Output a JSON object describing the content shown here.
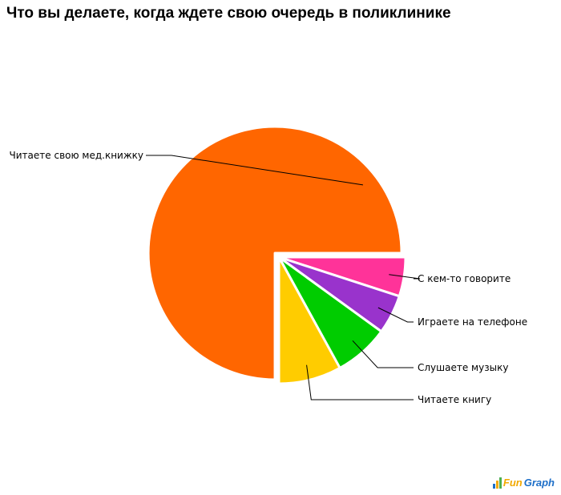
{
  "chart_data": {
    "type": "pie",
    "title": "Что вы делаете, когда ждете свою очередь в поликлинике",
    "slices": [
      {
        "label": "С кем-то говорите",
        "value": 5,
        "color": "#ff3399"
      },
      {
        "label": "Играете на телефоне",
        "value": 5,
        "color": "#9933cc"
      },
      {
        "label": "Слушаете музыку",
        "value": 7,
        "color": "#00cc00"
      },
      {
        "label": "Читаете книгу",
        "value": 8,
        "color": "#ffcc00"
      },
      {
        "label": "Читаете свою мед.книжку",
        "value": 75,
        "color": "#ff6600"
      }
    ],
    "legend": "none"
  },
  "logo": {
    "text_fun": "Fun",
    "text_graph": "Graph"
  }
}
